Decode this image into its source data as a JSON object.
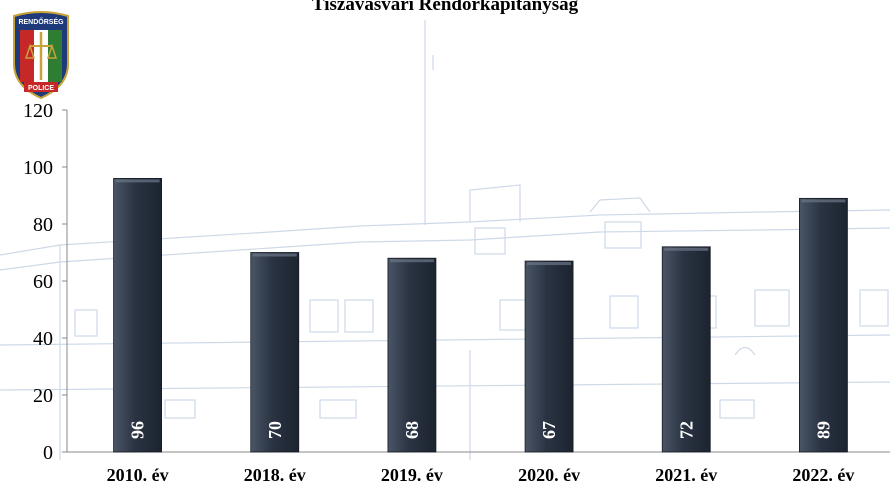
{
  "logo": {
    "top_text": "RENDŐRSÉG",
    "bottom_text": "POLICE"
  },
  "chart_data": {
    "type": "bar",
    "title": "Tiszavasvári Rendőrkapitányság",
    "categories": [
      "2010. év",
      "2018. év",
      "2019. év",
      "2020. év",
      "2021. év",
      "2022. év"
    ],
    "values": [
      96,
      70,
      68,
      67,
      72,
      89
    ],
    "ylim": [
      0,
      120
    ],
    "yticks": [
      0,
      20,
      40,
      60,
      80,
      100,
      120
    ],
    "xlabel": "",
    "ylabel": "",
    "grid": false,
    "legend": "none",
    "bar_color": "#2a3342",
    "data_label_color": "#ffffff"
  }
}
